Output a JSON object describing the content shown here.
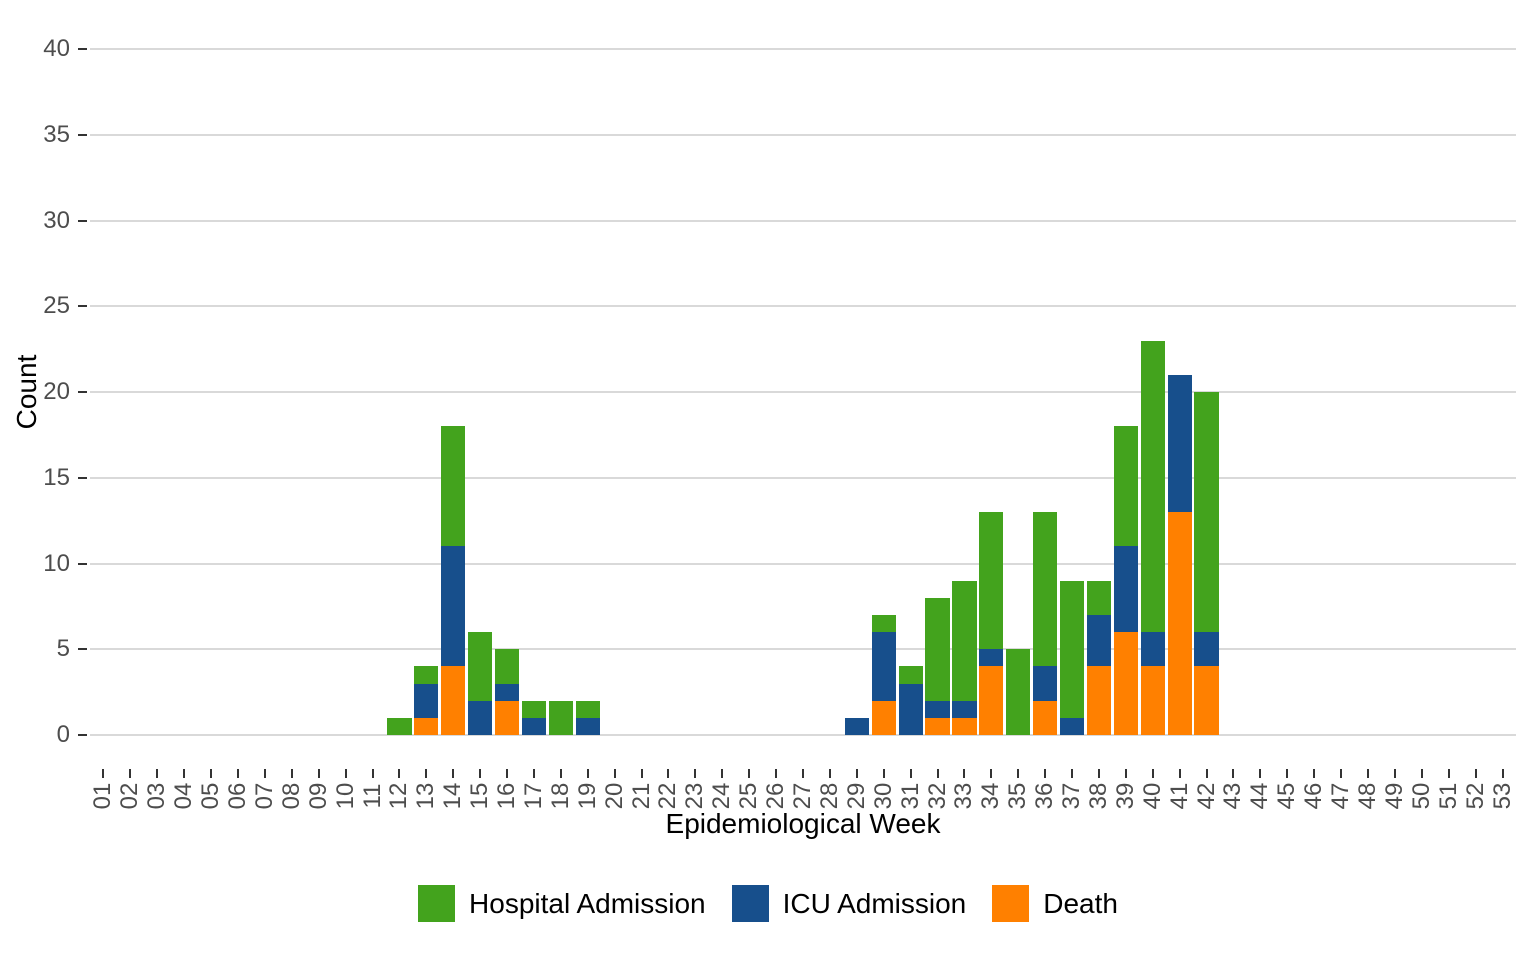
{
  "chart_data": {
    "type": "bar",
    "stacked": true,
    "title": "",
    "xlabel": "Epidemiological Week",
    "ylabel": "Count",
    "ylim": [
      0,
      40
    ],
    "y_ticks": [
      0,
      5,
      10,
      15,
      20,
      25,
      30,
      35,
      40
    ],
    "grid": "horizontal-major-only",
    "legend_position": "bottom",
    "categories": [
      "01",
      "02",
      "03",
      "04",
      "05",
      "06",
      "07",
      "08",
      "09",
      "10",
      "11",
      "12",
      "13",
      "14",
      "15",
      "16",
      "17",
      "18",
      "19",
      "20",
      "21",
      "22",
      "23",
      "24",
      "25",
      "26",
      "27",
      "28",
      "29",
      "30",
      "31",
      "32",
      "33",
      "34",
      "35",
      "36",
      "37",
      "38",
      "39",
      "40",
      "41",
      "42",
      "43",
      "44",
      "45",
      "46",
      "47",
      "48",
      "49",
      "50",
      "51",
      "52",
      "53"
    ],
    "stack_order_bottom_to_top": [
      "Death",
      "ICU Admission",
      "Hospital Admission"
    ],
    "series": [
      {
        "name": "Hospital Admission",
        "color": "#43A31D",
        "values": [
          0,
          0,
          0,
          0,
          0,
          0,
          0,
          0,
          0,
          0,
          0,
          1,
          1,
          7,
          4,
          2,
          1,
          2,
          1,
          0,
          0,
          0,
          0,
          0,
          0,
          0,
          0,
          0,
          0,
          1,
          1,
          6,
          7,
          8,
          5,
          9,
          8,
          2,
          7,
          17,
          0,
          14,
          0,
          0,
          0,
          0,
          0,
          0,
          0,
          0,
          0,
          0,
          0
        ]
      },
      {
        "name": "ICU Admission",
        "color": "#174F8C",
        "values": [
          0,
          0,
          0,
          0,
          0,
          0,
          0,
          0,
          0,
          0,
          0,
          0,
          2,
          7,
          2,
          1,
          1,
          0,
          1,
          0,
          0,
          0,
          0,
          0,
          0,
          0,
          0,
          0,
          1,
          4,
          3,
          1,
          1,
          1,
          0,
          2,
          1,
          3,
          5,
          2,
          8,
          2,
          0,
          0,
          0,
          0,
          0,
          0,
          0,
          0,
          0,
          0,
          0
        ]
      },
      {
        "name": "Death",
        "color": "#FF8000",
        "values": [
          0,
          0,
          0,
          0,
          0,
          0,
          0,
          0,
          0,
          0,
          0,
          0,
          1,
          4,
          0,
          2,
          0,
          0,
          0,
          0,
          0,
          0,
          0,
          0,
          0,
          0,
          0,
          0,
          0,
          2,
          0,
          1,
          1,
          4,
          0,
          2,
          0,
          4,
          6,
          4,
          13,
          4,
          0,
          0,
          0,
          0,
          0,
          0,
          0,
          0,
          0,
          0,
          0
        ]
      }
    ],
    "style": {
      "gridline_color": "#d9d9d9",
      "tick_color": "#333333",
      "tick_label_color": "#4d4d4d",
      "axis_title_color": "#000000",
      "background_color": "#ffffff"
    }
  }
}
